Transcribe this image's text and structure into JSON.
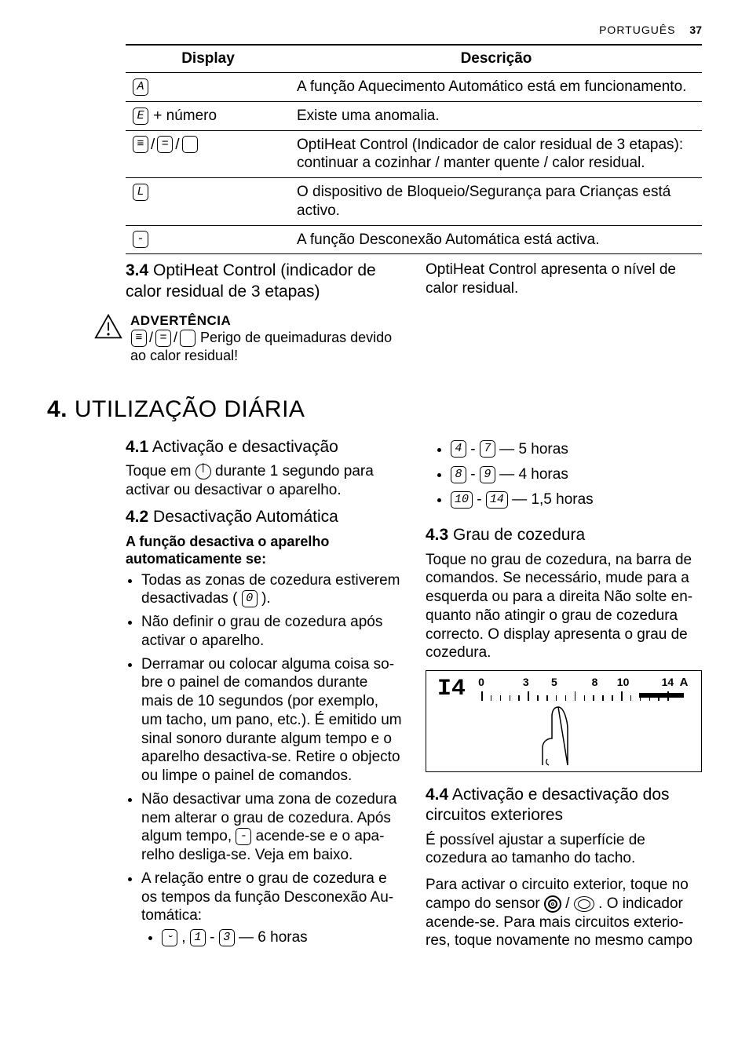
{
  "header": {
    "language": "PORTUGUÊS",
    "page_number": "37"
  },
  "table": {
    "headers": {
      "display": "Display",
      "desc": "Descrição"
    },
    "rows": [
      {
        "icon_type": "single",
        "icons": [
          "A"
        ],
        "suffix": "",
        "desc": "A função Aquecimento Automático está em funciona­mento."
      },
      {
        "icon_type": "single",
        "icons": [
          "E"
        ],
        "suffix": " + número",
        "desc": "Existe uma anomalia."
      },
      {
        "icon_type": "triple",
        "icons": [
          "≡",
          "=",
          " "
        ],
        "suffix": "",
        "desc": "OptiHeat Control (Indicador de calor residual de 3 eta­pas): continuar a cozinhar / manter quente / calor resi­dual."
      },
      {
        "icon_type": "single",
        "icons": [
          "L"
        ],
        "suffix": "",
        "desc": "O dispositivo de Bloqueio/Segurança para Crianças es­tá activo."
      },
      {
        "icon_type": "single",
        "icons": [
          "-"
        ],
        "suffix": "",
        "desc": "A função Desconexão Automática está activa."
      }
    ]
  },
  "sec34": {
    "num": "3.4",
    "title": " OptiHeat Control (indicador de calor residual de 3 etapas)",
    "right_text": "OptiHeat Control apresenta o nível de calor residual.",
    "warn_title": "ADVERTÊNCIA",
    "warn_icons": [
      "≡",
      "=",
      " "
    ],
    "warn_text_tail": " Perigo de queima­duras devido ao calor residual!"
  },
  "chapter4": {
    "num": "4.",
    "title": " UTILIZAÇÃO DIÁRIA"
  },
  "sec41": {
    "num": "4.1",
    "title": " Activação e desactivação",
    "body_before": "Toque em ",
    "body_after": " durante 1 segundo para activar ou desactivar o aparelho."
  },
  "sec42": {
    "num": "4.2",
    "title": " Desactivação Automática",
    "lead": "A função desactiva o aparelho automaticamente se:",
    "bullets": [
      {
        "pre": "Todas as zonas de cozedura estiverem desactivadas ( ",
        "icon": "0",
        "post": " )."
      },
      {
        "text": "Não definir o grau de cozedura após activar o aparelho."
      },
      {
        "text": "Derramar ou colocar alguma coisa so­bre o painel de comandos durante mais de 10 segundos (por exemplo, um tacho, um pano, etc.). É emitido um sinal sonoro durante algum tempo e o aparelho desactiva-se. Retire o ob­jecto ou limpe o painel de comandos."
      },
      {
        "pre": "Não desactivar uma zona de cozedura nem alterar o grau de cozedura. Após algum tempo, ",
        "icon": "-",
        "post": " acende-se e o apa­relho desliga-se. Veja em baixo."
      },
      {
        "text": "A relação entre o grau de cozedura e os tempos da função Desconexão Au­tomática:",
        "sub": {
          "icons": [
            "⏑",
            "1",
            "3"
          ],
          "sep": [
            " , ",
            " - "
          ],
          "tail": " — 6 horas"
        }
      }
    ]
  },
  "time_bullets_right": [
    {
      "a": "4",
      "b": "7",
      "tail": " — 5 horas"
    },
    {
      "a": "8",
      "b": "9",
      "tail": " — 4 horas"
    },
    {
      "a": "10",
      "b": "14",
      "tail": " — 1,5 horas",
      "wide": true
    }
  ],
  "sec43": {
    "num": "4.3",
    "title": " Grau de cozedura",
    "body": "Toque no grau de cozedura, na barra de comandos. Se necessário, mude para a esquerda ou para a direita Não solte en­quanto não atingir o grau de cozedura correcto. O display apresenta o grau de cozedura.",
    "figure": {
      "display_value": "I4",
      "scale_labels": [
        "0",
        "3",
        "5",
        "8",
        "10",
        "14",
        "A"
      ],
      "tick_count": 20,
      "bar_fill_pct_from_right": 22
    }
  },
  "sec44": {
    "num": "4.4",
    "title": " Activação e desactivação dos circuitos exteriores",
    "p1": "É possível ajustar a superfície de cozedu­ra ao tamanho do tacho.",
    "p2_before": "Para activar o circuito exterior, toque no campo do sensor ",
    "p2_mid": " / ",
    "p2_after": " . O indicador acende-se. Para mais circuitos exterio­res, toque novamente no mesmo campo"
  }
}
